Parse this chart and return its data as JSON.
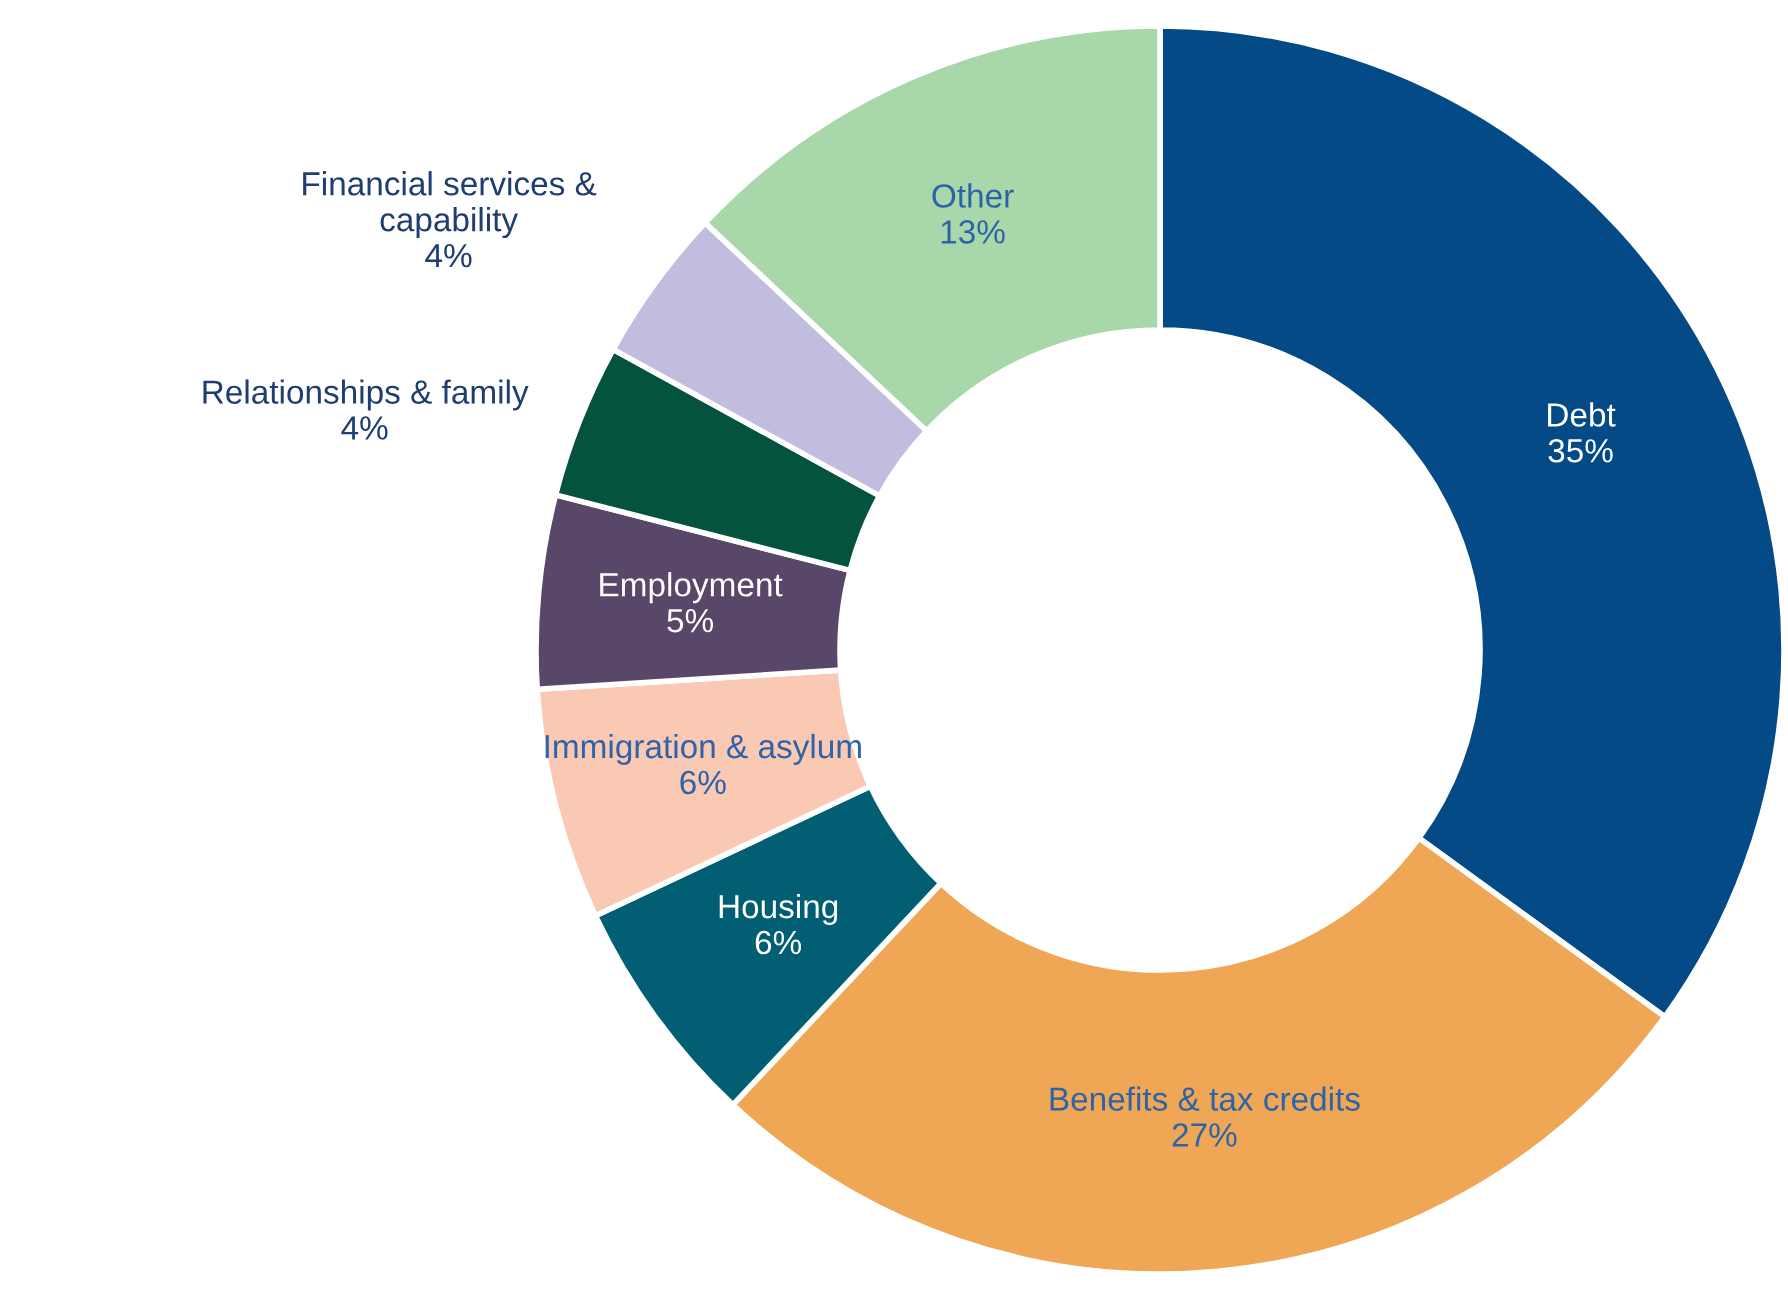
{
  "chart_data": {
    "type": "donut",
    "categories": [
      "Debt",
      "Benefits & tax credits",
      "Housing",
      "Immigration & asylum",
      "Employment",
      "Relationships & family",
      "Financial services &\ncapability",
      "Other"
    ],
    "values": [
      35,
      27,
      6,
      6,
      5,
      4,
      4,
      13
    ],
    "value_labels": [
      "35%",
      "27%",
      "6%",
      "6%",
      "5%",
      "4%",
      "4%",
      "13%"
    ],
    "colors": [
      "#034a86",
      "#efa755",
      "#025f73",
      "#f9c9b4",
      "#594769",
      "#04533f",
      "#c1bddf",
      "#a8d8a9"
    ],
    "legend": false
  }
}
